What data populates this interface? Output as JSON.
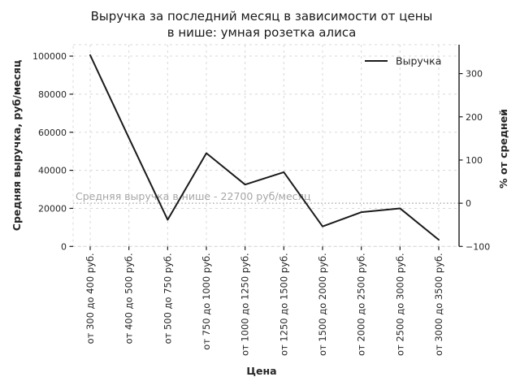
{
  "title": {
    "line1": "Выручка за последний месяц в зависимости от цены",
    "line2": "в нише: умная розетка алиса"
  },
  "legend": {
    "label": "Выручка"
  },
  "axes": {
    "x_label": "Цена",
    "y_left_label": "Средняя выручка, руб/месяц",
    "y_right_label": "% от средней",
    "y_left_ticks": [
      0,
      20000,
      40000,
      60000,
      80000,
      100000
    ],
    "y_right_ticks": [
      -100,
      0,
      100,
      200,
      300
    ]
  },
  "annotation": {
    "text": "Средняя выручка в нише - 22700 руб/месяц",
    "value": 22700
  },
  "colors": {
    "line": "#1a1a1a",
    "grid": "#d8d8d8",
    "average_line": "#b0b0b0",
    "annotation_text": "#a6a6a6",
    "text": "#262626"
  },
  "chart_data": {
    "type": "line",
    "title": "Выручка за последний месяц в зависимости от цены в нише: умная розетка алиса",
    "xlabel": "Цена",
    "ylabel_left": "Средняя выручка, руб/месяц",
    "ylabel_right": "% от средней",
    "categories": [
      "от 300 до 400 руб.",
      "от 400 до 500 руб.",
      "от 500 до 750 руб.",
      "от 750 до 1000 руб.",
      "от 1000 до 1250 руб.",
      "от 1250 до 1500 руб.",
      "от 1500 до 2000 руб.",
      "от 2000 до 2500 руб.",
      "от 2500 до 3000 руб.",
      "от 3000 до 3500 руб."
    ],
    "series": [
      {
        "name": "Выручка",
        "values": [
          100500,
          57000,
          14000,
          49000,
          32500,
          39000,
          10500,
          18000,
          20000,
          3500
        ]
      }
    ],
    "average_line": 22700,
    "ylim_left": [
      0,
      106000
    ],
    "ylim_right": [
      -100,
      367
    ],
    "y_left_ticks": [
      0,
      20000,
      40000,
      60000,
      80000,
      100000
    ],
    "y_right_ticks": [
      -100,
      0,
      100,
      200,
      300
    ],
    "grid": true,
    "grid_style": "dashed",
    "legend_position": "upper right"
  }
}
